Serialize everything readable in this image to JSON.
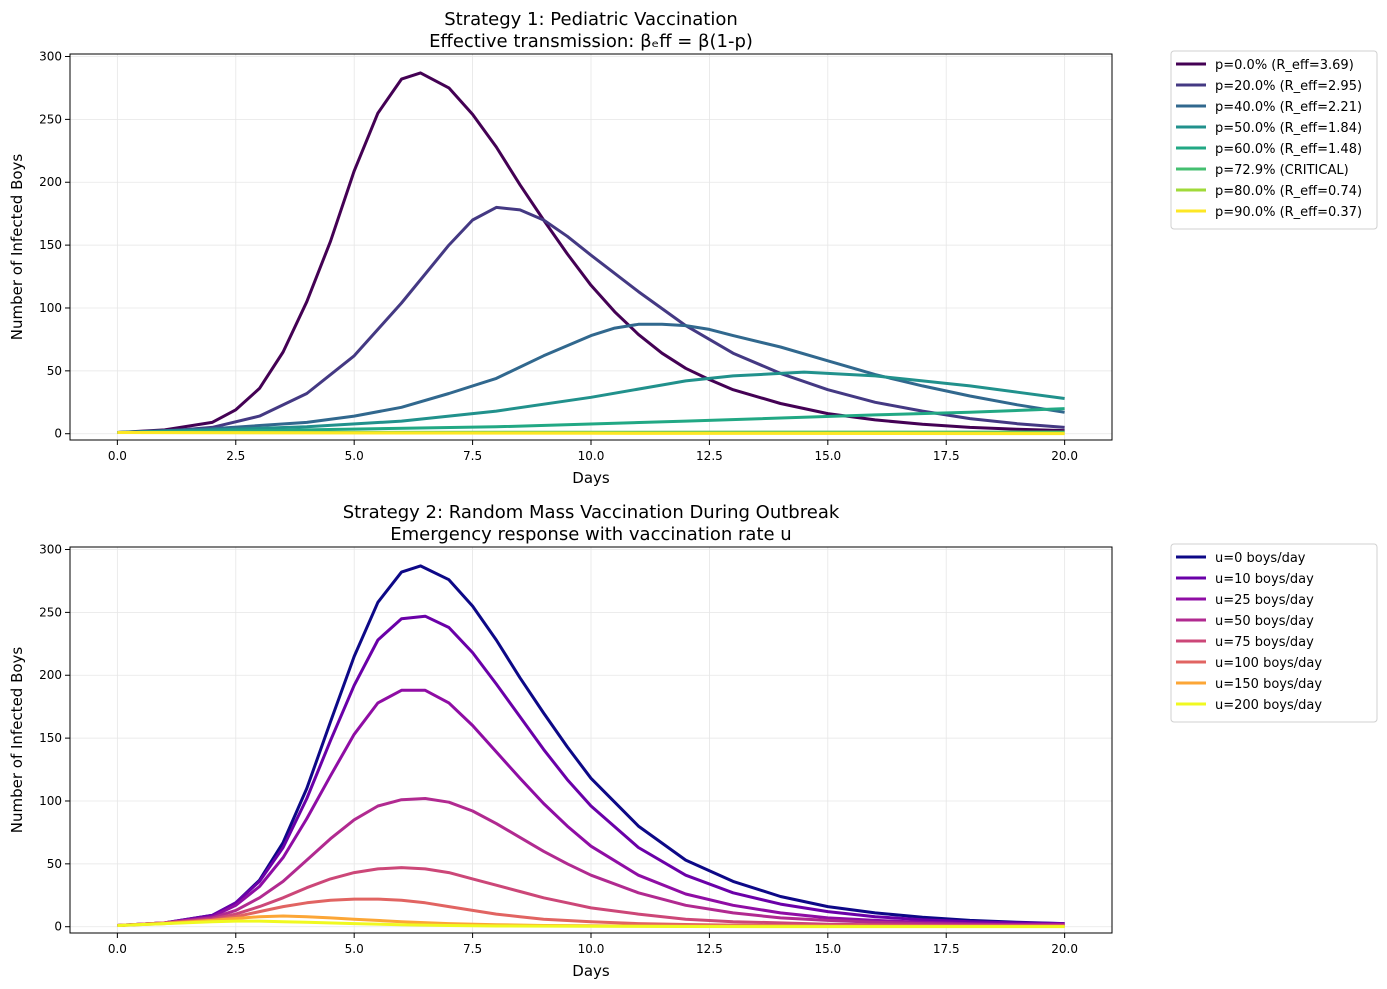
{
  "chart_data": [
    {
      "type": "line",
      "title": "Strategy 1: Pediatric Vaccination",
      "subtitle": "Effective transmission: βₑff = β(1-p)",
      "xlabel": "Days",
      "ylabel": "Number of Infected Boys",
      "xlim": [
        -1,
        21
      ],
      "ylim": [
        -5,
        302
      ],
      "xticks": [
        "0.0",
        "2.5",
        "5.0",
        "7.5",
        "10.0",
        "12.5",
        "15.0",
        "17.5",
        "20.0"
      ],
      "yticks": [
        "0",
        "50",
        "100",
        "150",
        "200",
        "250",
        "300"
      ],
      "grid": true,
      "legend_position": "outside-right",
      "series": [
        {
          "name": "p=0.0% (R_eff=3.69)",
          "color": "#440154",
          "x": [
            0,
            1,
            2,
            2.5,
            3,
            3.5,
            4,
            4.5,
            5,
            5.5,
            6,
            6.4,
            7,
            7.5,
            8,
            8.5,
            9,
            9.5,
            10,
            10.5,
            11,
            11.5,
            12,
            12.5,
            13,
            14,
            15,
            16,
            17,
            18,
            19,
            20
          ],
          "y": [
            1,
            3,
            9,
            19,
            36,
            65,
            105,
            153,
            209,
            255,
            282,
            287,
            275,
            254,
            228,
            198,
            170,
            143,
            118,
            97,
            79,
            64,
            52,
            43,
            35,
            24,
            16,
            11,
            7.5,
            5,
            3.5,
            2.5
          ]
        },
        {
          "name": "p=20.0% (R_eff=2.95)",
          "color": "#443983",
          "x": [
            0,
            1,
            2,
            3,
            4,
            5,
            6,
            7,
            7.5,
            8,
            8.5,
            9,
            9.5,
            10,
            11,
            12,
            13,
            14,
            15,
            16,
            17,
            18,
            19,
            20
          ],
          "y": [
            1,
            2,
            5,
            14,
            32,
            62,
            104,
            150,
            170,
            180,
            178,
            170,
            157,
            142,
            113,
            86,
            64,
            48,
            35,
            25,
            18,
            12,
            8,
            5
          ]
        },
        {
          "name": "p=40.0% (R_eff=2.21)",
          "color": "#31688e",
          "x": [
            0,
            2,
            4,
            5,
            6,
            7,
            8,
            9,
            10,
            10.5,
            11,
            11.5,
            12,
            12.5,
            13,
            14,
            15,
            16,
            17,
            18,
            19,
            20
          ],
          "y": [
            1,
            4,
            9,
            14,
            21,
            32,
            44,
            62,
            78,
            84,
            87,
            87,
            86,
            83,
            78,
            69,
            58,
            47,
            38,
            30,
            23,
            17
          ]
        },
        {
          "name": "p=50.0% (R_eff=1.84)",
          "color": "#21918c",
          "x": [
            0,
            2,
            4,
            6,
            8,
            10,
            12,
            13,
            14,
            14.5,
            15,
            16,
            17,
            18,
            19,
            20
          ],
          "y": [
            1,
            3,
            5.5,
            10,
            18,
            29,
            42,
            46,
            48,
            49,
            48,
            46,
            42,
            38,
            33,
            28
          ]
        },
        {
          "name": "p=60.0% (R_eff=1.48)",
          "color": "#22a884",
          "x": [
            0,
            4,
            8,
            12,
            16,
            18,
            20
          ],
          "y": [
            1,
            3,
            5.5,
            10,
            15,
            17,
            20
          ]
        },
        {
          "name": "p=72.9% (CRITICAL)",
          "color": "#44bf70",
          "x": [
            0,
            10,
            20
          ],
          "y": [
            1,
            1.2,
            1.3
          ]
        },
        {
          "name": "p=80.0% (R_eff=0.74)",
          "color": "#a0da39",
          "x": [
            0,
            10,
            20
          ],
          "y": [
            1,
            0.7,
            0.4
          ]
        },
        {
          "name": "p=90.0% (R_eff=0.37)",
          "color": "#fde725",
          "x": [
            0,
            10,
            20
          ],
          "y": [
            1,
            0.3,
            0.1
          ]
        }
      ]
    },
    {
      "type": "line",
      "title": "Strategy 2: Random Mass Vaccination During Outbreak",
      "subtitle": "Emergency response with vaccination rate u",
      "xlabel": "Days",
      "ylabel": "Number of Infected Boys",
      "xlim": [
        -1,
        21
      ],
      "ylim": [
        -5,
        302
      ],
      "xticks": [
        "0.0",
        "2.5",
        "5.0",
        "7.5",
        "10.0",
        "12.5",
        "15.0",
        "17.5",
        "20.0"
      ],
      "yticks": [
        "0",
        "50",
        "100",
        "150",
        "200",
        "250",
        "300"
      ],
      "grid": true,
      "legend_position": "outside-right",
      "series": [
        {
          "name": "u=0 boys/day",
          "color": "#0d0887",
          "x": [
            0,
            1,
            2,
            2.5,
            3,
            3.5,
            4,
            4.5,
            5,
            5.5,
            6,
            6.4,
            7,
            7.5,
            8,
            8.5,
            9,
            9.5,
            10,
            11,
            12,
            13,
            14,
            15,
            16,
            17,
            18,
            19,
            20
          ],
          "y": [
            1,
            3,
            9,
            19,
            37,
            67,
            110,
            163,
            215,
            258,
            282,
            287,
            276,
            255,
            228,
            198,
            170,
            143,
            118,
            80,
            53,
            36,
            24,
            16,
            11,
            7.5,
            5,
            3.5,
            2.5
          ]
        },
        {
          "name": "u=10 boys/day",
          "color": "#6a00a8",
          "x": [
            0,
            1,
            2,
            2.5,
            3,
            3.5,
            4,
            4.5,
            5,
            5.5,
            6,
            6.5,
            7,
            7.5,
            8,
            8.5,
            9,
            9.5,
            10,
            11,
            12,
            13,
            14,
            15,
            16,
            17,
            18,
            19,
            20
          ],
          "y": [
            1,
            3,
            9,
            19,
            36,
            63,
            102,
            148,
            192,
            228,
            245,
            247,
            238,
            218,
            193,
            167,
            141,
            117,
            96,
            63,
            41,
            27,
            18,
            12,
            8,
            5.5,
            4,
            3,
            2.5
          ]
        },
        {
          "name": "u=25 boys/day",
          "color": "#8f0da4",
          "x": [
            0,
            1,
            2,
            2.5,
            3,
            3.5,
            4,
            4.5,
            5,
            5.5,
            6,
            6.5,
            7,
            7.5,
            8,
            8.5,
            9,
            9.5,
            10,
            11,
            12,
            13,
            14,
            15,
            16,
            17,
            18,
            19,
            20
          ],
          "y": [
            1,
            3,
            8,
            17,
            32,
            55,
            86,
            120,
            153,
            178,
            188,
            188,
            178,
            160,
            139,
            118,
            98,
            80,
            64,
            41,
            26,
            17,
            11,
            7,
            5,
            3.5,
            2.5,
            2,
            2
          ]
        },
        {
          "name": "u=50 boys/day",
          "color": "#b12a90",
          "x": [
            0,
            1,
            2,
            2.5,
            3,
            3.5,
            4,
            4.5,
            5,
            5.5,
            6,
            6.5,
            7,
            7.5,
            8,
            8.5,
            9,
            9.5,
            10,
            11,
            12,
            13,
            14,
            15,
            16,
            17,
            18,
            19,
            20
          ],
          "y": [
            1,
            3,
            7,
            13,
            23,
            36,
            53,
            70,
            85,
            96,
            101,
            102,
            99,
            92,
            82,
            71,
            60,
            50,
            41,
            27,
            17,
            11,
            7,
            5,
            3.5,
            2.5,
            2,
            1.5,
            1.5
          ]
        },
        {
          "name": "u=75 boys/day",
          "color": "#cc4778",
          "x": [
            0,
            1,
            2,
            2.5,
            3,
            3.5,
            4,
            4.5,
            5,
            5.5,
            6,
            6.5,
            7,
            7.5,
            8,
            8.5,
            9,
            9.5,
            10,
            11,
            12,
            13,
            14,
            15,
            16,
            17,
            18,
            19,
            20
          ],
          "y": [
            1,
            3,
            6,
            10,
            16,
            23,
            31,
            38,
            43,
            46,
            47,
            46,
            43,
            38,
            33,
            28,
            23,
            19,
            15,
            10,
            6,
            4,
            3,
            2,
            1.5,
            1.2,
            1,
            1,
            1
          ]
        },
        {
          "name": "u=100 boys/day",
          "color": "#e16462",
          "x": [
            0,
            1,
            2,
            2.5,
            3,
            3.5,
            4,
            4.5,
            5,
            5.5,
            6,
            6.5,
            7,
            7.5,
            8,
            8.5,
            9,
            10,
            11,
            12,
            13,
            14,
            15,
            16,
            17,
            18,
            19,
            20
          ],
          "y": [
            1,
            3,
            5,
            8,
            12,
            16,
            19,
            21,
            22,
            22,
            21,
            19,
            16,
            13,
            10,
            8,
            6,
            4,
            2.5,
            1.8,
            1.3,
            1,
            0.8,
            0.7,
            0.6,
            0.5,
            0.5,
            0.5
          ]
        },
        {
          "name": "u=150 boys/day",
          "color": "#fca636",
          "x": [
            0,
            1,
            2,
            2.5,
            3,
            3.5,
            4,
            4.5,
            5,
            6,
            7,
            8,
            9,
            10,
            12,
            14,
            16,
            18,
            20
          ],
          "y": [
            1,
            2.5,
            5,
            6.5,
            8,
            8.5,
            8,
            7,
            6,
            4,
            2.5,
            1.6,
            1,
            0.7,
            0.4,
            0.3,
            0.2,
            0.2,
            0.2
          ]
        },
        {
          "name": "u=200 boys/day",
          "color": "#f0f921",
          "x": [
            0,
            1,
            2,
            2.5,
            3,
            3.5,
            4,
            5,
            6,
            7,
            8,
            10,
            12,
            14,
            16,
            18,
            20
          ],
          "y": [
            1,
            2.5,
            4,
            4.5,
            4.5,
            4,
            3.5,
            2.5,
            1.5,
            1,
            0.6,
            0.3,
            0.2,
            0.1,
            0.1,
            0.1,
            0.1
          ]
        }
      ]
    }
  ]
}
